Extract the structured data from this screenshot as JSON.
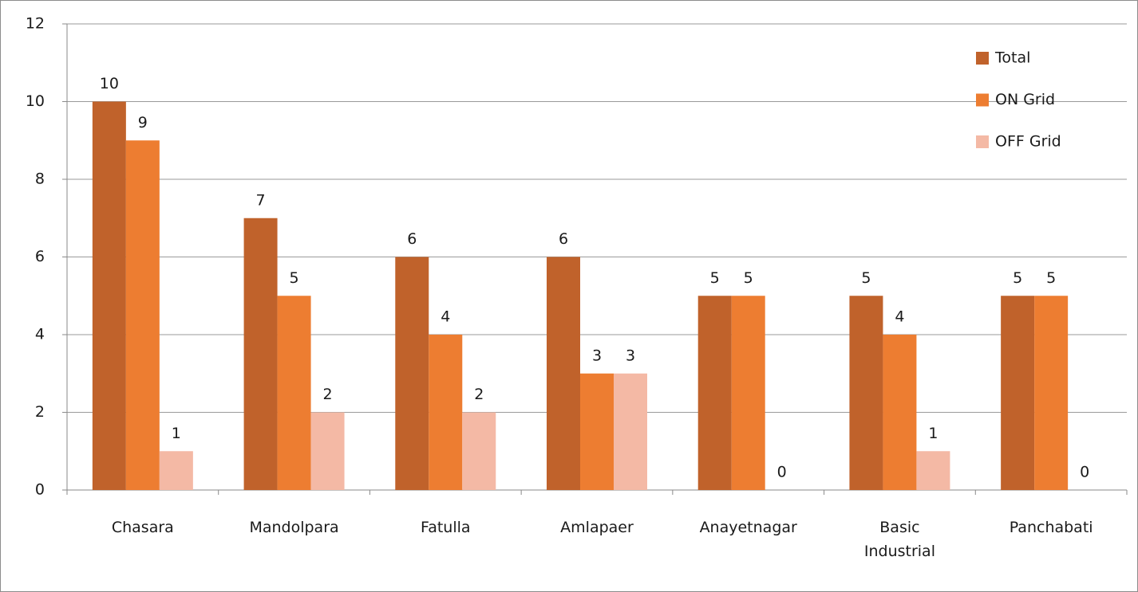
{
  "chart_data": {
    "type": "bar",
    "categories": [
      "Chasara",
      "Mandolpara",
      "Fatulla",
      "Amlapaer",
      "Anayetnagar",
      "Basic Industrial",
      "Panchabati"
    ],
    "series": [
      {
        "name": "Total",
        "color": "#c0622b",
        "values": [
          10,
          7,
          6,
          6,
          5,
          5,
          5
        ]
      },
      {
        "name": "ON Grid",
        "color": "#ed7d31",
        "values": [
          9,
          5,
          4,
          3,
          5,
          4,
          5
        ]
      },
      {
        "name": "OFF Grid",
        "color": "#f4b9a5",
        "values": [
          1,
          2,
          2,
          3,
          0,
          1,
          0
        ]
      }
    ],
    "ylim": [
      0,
      12
    ],
    "yticks": [
      0,
      2,
      4,
      6,
      8,
      10,
      12
    ],
    "grid": true,
    "legend": "upper right"
  }
}
